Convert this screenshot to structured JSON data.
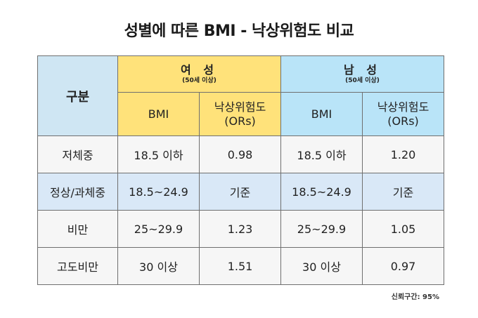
{
  "title": "성별에 따른 BMI - 낙상위험도 비교",
  "table": {
    "corner": "구분",
    "groups": [
      {
        "title": "여  성",
        "subtitle": "(50세 이상)",
        "color": "#ffe27a"
      },
      {
        "title": "남  성",
        "subtitle": "(50세 이상)",
        "color": "#b9e4f8"
      }
    ],
    "subheaders": [
      {
        "line1": "BMI",
        "line2": ""
      },
      {
        "line1": "낙상위험도",
        "line2": "(ORs)"
      },
      {
        "line1": "BMI",
        "line2": ""
      },
      {
        "line1": "낙상위험도",
        "line2": "(ORs)"
      }
    ],
    "rows": [
      {
        "label": "저체중",
        "values": [
          "18.5 이하",
          "0.98",
          "18.5 이하",
          "1.20"
        ],
        "highlight": false
      },
      {
        "label": "정상/과체중",
        "values": [
          "18.5~24.9",
          "기준",
          "18.5~24.9",
          "기준"
        ],
        "highlight": true
      },
      {
        "label": "비만",
        "values": [
          "25~29.9",
          "1.23",
          "25~29.9",
          "1.05"
        ],
        "highlight": false
      },
      {
        "label": "고도비만",
        "values": [
          "30 이상",
          "1.51",
          "30 이상",
          "0.97"
        ],
        "highlight": false
      }
    ]
  },
  "footnote": "신뢰구간: 95%"
}
